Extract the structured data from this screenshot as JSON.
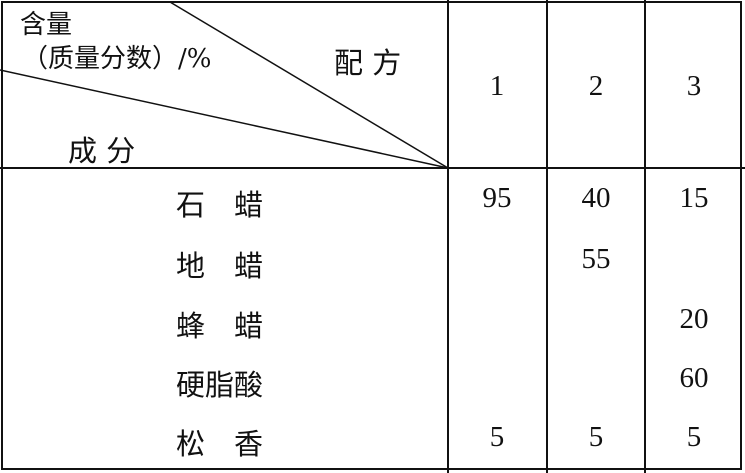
{
  "header": {
    "corner_top": "含量",
    "corner_sub": "（质量分数）/%",
    "corner_right": "配 方",
    "corner_bottom": "成 分",
    "columns": [
      "1",
      "2",
      "3"
    ]
  },
  "rows": [
    {
      "name": "石　蜡",
      "values": [
        "95",
        "40",
        "15"
      ]
    },
    {
      "name": "地　蜡",
      "values": [
        "",
        "55",
        ""
      ]
    },
    {
      "name": "蜂　蜡",
      "values": [
        "",
        "",
        "20"
      ]
    },
    {
      "name": "硬脂酸",
      "values": [
        "",
        "",
        "60"
      ]
    },
    {
      "name": "松　香",
      "values": [
        "5",
        "5",
        "5"
      ]
    }
  ]
}
